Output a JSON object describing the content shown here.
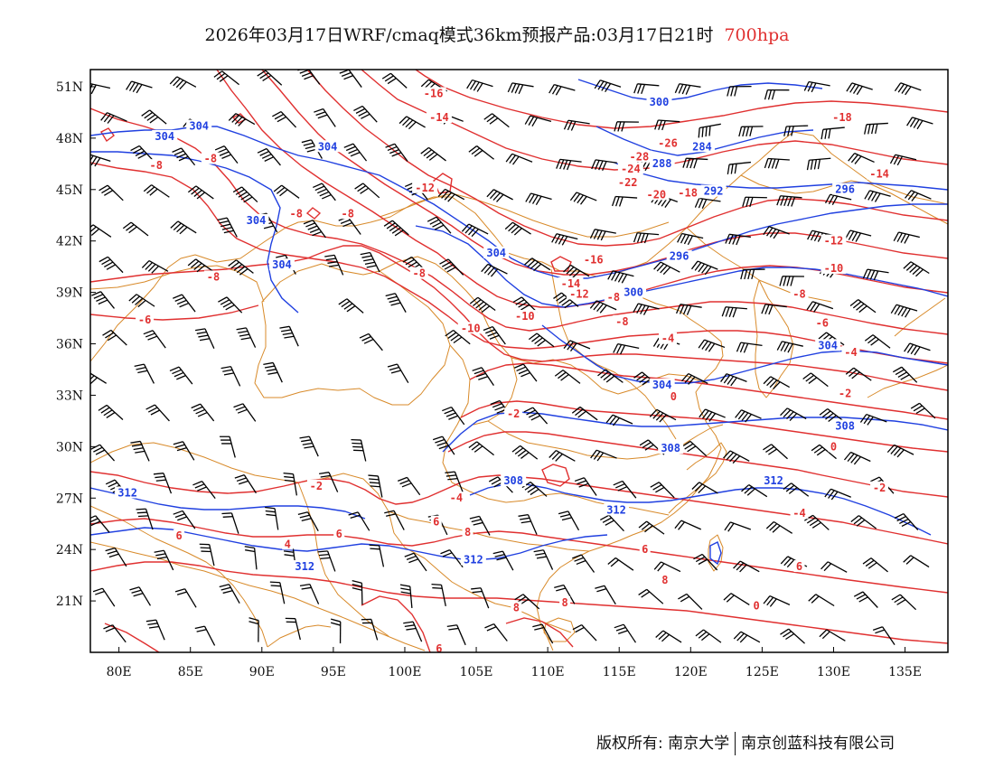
{
  "title": {
    "main": "2026年03月17日WRF/cmaq模式36km预报产品:03月17日21时",
    "level": "700hpa"
  },
  "colors": {
    "temperature": "#e03030",
    "height": "#2040e0",
    "boundary": "#d88a2a",
    "wind": "#000000"
  },
  "axes": {
    "lat_labels": [
      "51N",
      "48N",
      "45N",
      "42N",
      "39N",
      "36N",
      "33N",
      "30N",
      "27N",
      "24N",
      "21N"
    ],
    "lon_labels": [
      "80E",
      "85E",
      "90E",
      "95E",
      "100E",
      "105E",
      "110E",
      "115E",
      "120E",
      "125E",
      "130E",
      "135E"
    ]
  },
  "temperature_labels": [
    {
      "text": "-16",
      "lon": 102.0,
      "lat": 50.5
    },
    {
      "text": "-14",
      "lon": 102.4,
      "lat": 49.1
    },
    {
      "text": "-18",
      "lon": 130.6,
      "lat": 49.1
    },
    {
      "text": "-26",
      "lon": 118.4,
      "lat": 47.6
    },
    {
      "text": "-28",
      "lon": 116.4,
      "lat": 46.8
    },
    {
      "text": "-24",
      "lon": 115.8,
      "lat": 46.1
    },
    {
      "text": "-22",
      "lon": 115.6,
      "lat": 45.3
    },
    {
      "text": "-20",
      "lon": 117.6,
      "lat": 44.6
    },
    {
      "text": "-18",
      "lon": 119.8,
      "lat": 44.7
    },
    {
      "text": "-14",
      "lon": 133.2,
      "lat": 45.8
    },
    {
      "text": "-12",
      "lon": 101.4,
      "lat": 45.0
    },
    {
      "text": "-12",
      "lon": 130.0,
      "lat": 41.9
    },
    {
      "text": "-10",
      "lon": 130.0,
      "lat": 40.3
    },
    {
      "text": "-16",
      "lon": 113.2,
      "lat": 40.8
    },
    {
      "text": "-14",
      "lon": 111.6,
      "lat": 39.4
    },
    {
      "text": "-12",
      "lon": 112.2,
      "lat": 38.8
    },
    {
      "text": "-8",
      "lon": 101.0,
      "lat": 40.0
    },
    {
      "text": "-10",
      "lon": 104.6,
      "lat": 36.8
    },
    {
      "text": "-10",
      "lon": 108.4,
      "lat": 37.5
    },
    {
      "text": "-8",
      "lon": 114.6,
      "lat": 38.6
    },
    {
      "text": "-8",
      "lon": 115.2,
      "lat": 37.2
    },
    {
      "text": "-8",
      "lon": 127.6,
      "lat": 38.8
    },
    {
      "text": "-6",
      "lon": 129.2,
      "lat": 37.1
    },
    {
      "text": "-4",
      "lon": 118.4,
      "lat": 36.2
    },
    {
      "text": "-4",
      "lon": 131.2,
      "lat": 35.4
    },
    {
      "text": "-2",
      "lon": 130.8,
      "lat": 33.0
    },
    {
      "text": "0",
      "lon": 118.8,
      "lat": 32.8
    },
    {
      "text": "-2",
      "lon": 107.6,
      "lat": 31.8
    },
    {
      "text": "0",
      "lon": 130.0,
      "lat": 29.9
    },
    {
      "text": "-2",
      "lon": 133.2,
      "lat": 27.5
    },
    {
      "text": "-8",
      "lon": 82.6,
      "lat": 46.3
    },
    {
      "text": "-8",
      "lon": 86.4,
      "lat": 46.7
    },
    {
      "text": "-8",
      "lon": 92.4,
      "lat": 43.5
    },
    {
      "text": "-8",
      "lon": 96.0,
      "lat": 43.5
    },
    {
      "text": "-8",
      "lon": 86.6,
      "lat": 39.8
    },
    {
      "text": "-6",
      "lon": 81.8,
      "lat": 37.3
    },
    {
      "text": "-2",
      "lon": 93.8,
      "lat": 27.6
    },
    {
      "text": "-4",
      "lon": 103.6,
      "lat": 26.9
    },
    {
      "text": "-4",
      "lon": 127.6,
      "lat": 26.0
    },
    {
      "text": "6",
      "lon": 84.2,
      "lat": 24.7
    },
    {
      "text": "4",
      "lon": 91.8,
      "lat": 24.2
    },
    {
      "text": "6",
      "lon": 95.4,
      "lat": 24.8
    },
    {
      "text": "6",
      "lon": 102.2,
      "lat": 25.5
    },
    {
      "text": "8",
      "lon": 104.4,
      "lat": 24.9
    },
    {
      "text": "6",
      "lon": 116.8,
      "lat": 23.9
    },
    {
      "text": "6",
      "lon": 127.6,
      "lat": 22.9
    },
    {
      "text": "8",
      "lon": 118.2,
      "lat": 22.1
    },
    {
      "text": "8",
      "lon": 111.2,
      "lat": 20.8
    },
    {
      "text": "8",
      "lon": 107.8,
      "lat": 20.5
    },
    {
      "text": "0",
      "lon": 124.6,
      "lat": 20.6
    },
    {
      "text": "6",
      "lon": 102.4,
      "lat": 18.1
    }
  ],
  "height_labels": [
    {
      "text": "300",
      "lon": 117.8,
      "lat": 50.0
    },
    {
      "text": "284",
      "lon": 120.8,
      "lat": 47.4
    },
    {
      "text": "288",
      "lon": 118.0,
      "lat": 46.4
    },
    {
      "text": "292",
      "lon": 121.6,
      "lat": 44.8
    },
    {
      "text": "296",
      "lon": 130.8,
      "lat": 44.9
    },
    {
      "text": "304",
      "lon": 83.2,
      "lat": 48.0
    },
    {
      "text": "304",
      "lon": 85.6,
      "lat": 48.6
    },
    {
      "text": "304",
      "lon": 94.6,
      "lat": 47.4
    },
    {
      "text": "304",
      "lon": 89.6,
      "lat": 43.1
    },
    {
      "text": "304",
      "lon": 91.4,
      "lat": 40.5
    },
    {
      "text": "304",
      "lon": 106.4,
      "lat": 41.2
    },
    {
      "text": "296",
      "lon": 119.2,
      "lat": 41.0
    },
    {
      "text": "300",
      "lon": 116.0,
      "lat": 38.9
    },
    {
      "text": "304",
      "lon": 129.6,
      "lat": 35.8
    },
    {
      "text": "304",
      "lon": 118.0,
      "lat": 33.5
    },
    {
      "text": "308",
      "lon": 130.8,
      "lat": 31.1
    },
    {
      "text": "308",
      "lon": 118.6,
      "lat": 29.8
    },
    {
      "text": "308",
      "lon": 107.6,
      "lat": 27.9
    },
    {
      "text": "312",
      "lon": 80.6,
      "lat": 27.2
    },
    {
      "text": "312",
      "lon": 93.0,
      "lat": 22.9
    },
    {
      "text": "312",
      "lon": 104.8,
      "lat": 23.3
    },
    {
      "text": "312",
      "lon": 114.8,
      "lat": 26.2
    },
    {
      "text": "312",
      "lon": 125.8,
      "lat": 27.9
    }
  ],
  "credits": {
    "left": "版权所有: 南京大学",
    "right": "南京创蓝科技有限公司"
  }
}
